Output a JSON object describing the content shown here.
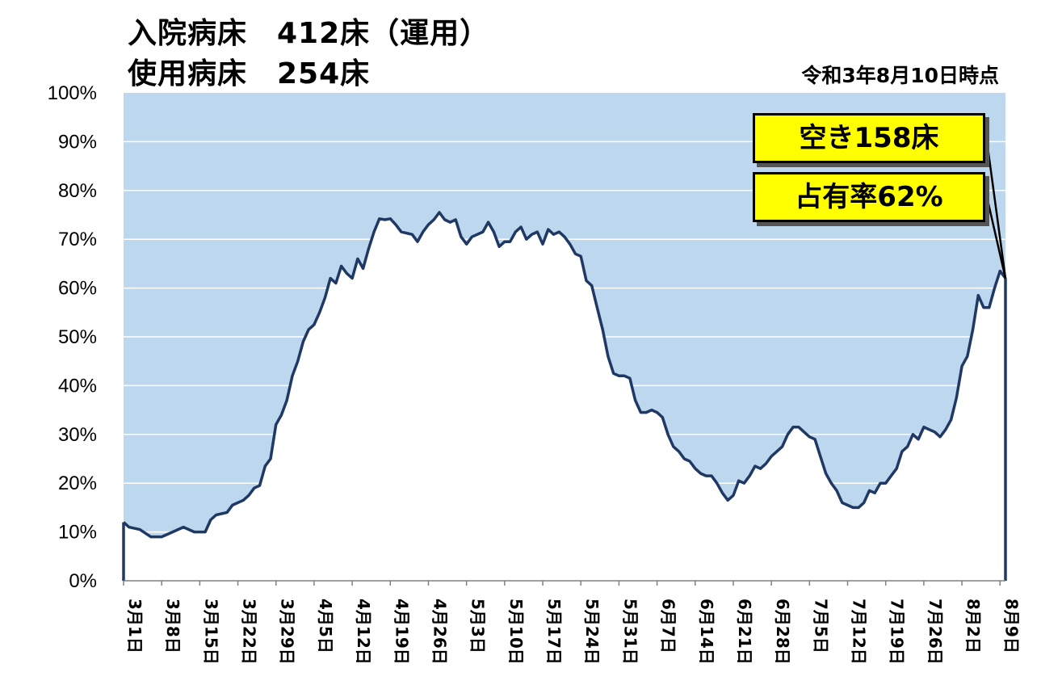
{
  "title_lines": [
    "入院病床　412床（運用）",
    "使用病床　254床"
  ],
  "as_of": "令和3年8月10日時点",
  "callouts": {
    "vacant": "空き158床",
    "occupancy": "占有率62%"
  },
  "colors": {
    "area_fill": "#bdd7ee",
    "line": "#1f3864",
    "callout_bg": "#ffff00",
    "grid": "#ffffff"
  },
  "chart_data": {
    "type": "area",
    "title": "",
    "xlabel": "",
    "ylabel": "",
    "ylim": [
      0,
      100
    ],
    "y_unit": "%",
    "y_ticks": [
      "0%",
      "10%",
      "20%",
      "30%",
      "40%",
      "50%",
      "60%",
      "70%",
      "80%",
      "90%",
      "100%"
    ],
    "x_ticks": [
      "3月1日",
      "3月8日",
      "3月15日",
      "3月22日",
      "3月29日",
      "4月5日",
      "4月12日",
      "4月19日",
      "4月26日",
      "5月3日",
      "5月10日",
      "5月17日",
      "5月24日",
      "5月31日",
      "6月7日",
      "6月14日",
      "6月21日",
      "6月28日",
      "7月5日",
      "7月12日",
      "7月19日",
      "7月26日",
      "8月2日",
      "8月9日"
    ],
    "x_start": "3月1日",
    "x_end": "8月10日",
    "grid": true,
    "series": [
      {
        "name": "",
        "points": [
          [
            "3月1日",
            12
          ],
          [
            "3月2日",
            11
          ],
          [
            "3月4日",
            10.5
          ],
          [
            "3月6日",
            9
          ],
          [
            "3月7日",
            9
          ],
          [
            "3月8日",
            9
          ],
          [
            "3月10日",
            10
          ],
          [
            "3月12日",
            11
          ],
          [
            "3月13日",
            10.5
          ],
          [
            "3月14日",
            10
          ],
          [
            "3月16日",
            10
          ],
          [
            "3月17日",
            12.5
          ],
          [
            "3月18日",
            13.5
          ],
          [
            "3月20日",
            14
          ],
          [
            "3月21日",
            15.5
          ],
          [
            "3月23日",
            16.5
          ],
          [
            "3月24日",
            17.5
          ],
          [
            "3月25日",
            19
          ],
          [
            "3月26日",
            19.5
          ],
          [
            "3月27日",
            23.5
          ],
          [
            "3月28日",
            25
          ],
          [
            "3月29日",
            32
          ],
          [
            "3月30日",
            34
          ],
          [
            "3月31日",
            37
          ],
          [
            "4月1日",
            42
          ],
          [
            "4月2日",
            45
          ],
          [
            "4月3日",
            49
          ],
          [
            "4月4日",
            51.5
          ],
          [
            "4月5日",
            52.5
          ],
          [
            "4月6日",
            55
          ],
          [
            "4月7日",
            58
          ],
          [
            "4月8日",
            62
          ],
          [
            "4月9日",
            61
          ],
          [
            "4月10日",
            64.5
          ],
          [
            "4月11日",
            63
          ],
          [
            "4月12日",
            62
          ],
          [
            "4月13日",
            66
          ],
          [
            "4月14日",
            64
          ],
          [
            "4月15日",
            68
          ],
          [
            "4月16日",
            71.5
          ],
          [
            "4月17日",
            74.2
          ],
          [
            "4月18日",
            74
          ],
          [
            "4月19日",
            74.2
          ],
          [
            "4月20日",
            73
          ],
          [
            "4月21日",
            71.5
          ],
          [
            "4月23日",
            71
          ],
          [
            "4月24日",
            69.5
          ],
          [
            "4月25日",
            71.5
          ],
          [
            "4月26日",
            73
          ],
          [
            "4月27日",
            74
          ],
          [
            "4月28日",
            75.5
          ],
          [
            "4月29日",
            74
          ],
          [
            "4月30日",
            73.5
          ],
          [
            "5月1日",
            74
          ],
          [
            "5月2日",
            70.5
          ],
          [
            "5月3日",
            69
          ],
          [
            "5月4日",
            70.5
          ],
          [
            "5月6日",
            71.5
          ],
          [
            "5月7日",
            73.5
          ],
          [
            "5月8日",
            71.5
          ],
          [
            "5月9日",
            68.5
          ],
          [
            "5月10日",
            69.5
          ],
          [
            "5月11日",
            69.5
          ],
          [
            "5月12日",
            71.5
          ],
          [
            "5月13日",
            72.5
          ],
          [
            "5月14日",
            70
          ],
          [
            "5月15日",
            71
          ],
          [
            "5月16日",
            71.5
          ],
          [
            "5月17日",
            69
          ],
          [
            "5月18日",
            72
          ],
          [
            "5月19日",
            71
          ],
          [
            "5月20日",
            71.5
          ],
          [
            "5月21日",
            70.5
          ],
          [
            "5月22日",
            69
          ],
          [
            "5月23日",
            67
          ],
          [
            "5月24日",
            66.5
          ],
          [
            "5月25日",
            61.5
          ],
          [
            "5月26日",
            60.5
          ],
          [
            "5月27日",
            56
          ],
          [
            "5月28日",
            51.5
          ],
          [
            "5月29日",
            46
          ],
          [
            "5月30日",
            42.5
          ],
          [
            "5月31日",
            42
          ],
          [
            "6月1日",
            42
          ],
          [
            "6月2日",
            41.5
          ],
          [
            "6月3日",
            37
          ],
          [
            "6月4日",
            34.5
          ],
          [
            "6月5日",
            34.5
          ],
          [
            "6月6日",
            35
          ],
          [
            "6月7日",
            34.5
          ],
          [
            "6月8日",
            33.5
          ],
          [
            "6月9日",
            30
          ],
          [
            "6月10日",
            27.5
          ],
          [
            "6月11日",
            26.5
          ],
          [
            "6月12日",
            25
          ],
          [
            "6月13日",
            24.5
          ],
          [
            "6月14日",
            23
          ],
          [
            "6月15日",
            22
          ],
          [
            "6月16日",
            21.5
          ],
          [
            "6月17日",
            21.5
          ],
          [
            "6月18日",
            20
          ],
          [
            "6月19日",
            18
          ],
          [
            "6月20日",
            16.5
          ],
          [
            "6月21日",
            17.5
          ],
          [
            "6月22日",
            20.5
          ],
          [
            "6月23日",
            20
          ],
          [
            "6月24日",
            21.5
          ],
          [
            "6月25日",
            23.5
          ],
          [
            "6月26日",
            23
          ],
          [
            "6月27日",
            24
          ],
          [
            "6月28日",
            25.5
          ],
          [
            "6月29日",
            26.5
          ],
          [
            "6月30日",
            27.5
          ],
          [
            "7月1日",
            30
          ],
          [
            "7月2日",
            31.5
          ],
          [
            "7月3日",
            31.5
          ],
          [
            "7月4日",
            30.5
          ],
          [
            "7月5日",
            29.5
          ],
          [
            "7月6日",
            29
          ],
          [
            "7月7日",
            25.5
          ],
          [
            "7月8日",
            22
          ],
          [
            "7月9日",
            20
          ],
          [
            "7月10日",
            18.5
          ],
          [
            "7月11日",
            16
          ],
          [
            "7月12日",
            15.5
          ],
          [
            "7月13日",
            15
          ],
          [
            "7月14日",
            15
          ],
          [
            "7月15日",
            16
          ],
          [
            "7月16日",
            18.5
          ],
          [
            "7月17日",
            18
          ],
          [
            "7月18日",
            20
          ],
          [
            "7月19日",
            20
          ],
          [
            "7月20日",
            21.5
          ],
          [
            "7月21日",
            23
          ],
          [
            "7月22日",
            26.5
          ],
          [
            "7月23日",
            27.5
          ],
          [
            "7月24日",
            30
          ],
          [
            "7月25日",
            29
          ],
          [
            "7月26日",
            31.5
          ],
          [
            "7月27日",
            31
          ],
          [
            "7月28日",
            30.5
          ],
          [
            "7月29日",
            29.5
          ],
          [
            "7月30日",
            31
          ],
          [
            "7月31日",
            33
          ],
          [
            "8月1日",
            37.5
          ],
          [
            "8月2日",
            44
          ],
          [
            "8月3日",
            46
          ],
          [
            "8月4日",
            51.5
          ],
          [
            "8月5日",
            58.5
          ],
          [
            "8月6日",
            56
          ],
          [
            "8月7日",
            56
          ],
          [
            "8月8日",
            60
          ],
          [
            "8月9日",
            63.5
          ],
          [
            "8月10日",
            62
          ]
        ]
      }
    ]
  }
}
